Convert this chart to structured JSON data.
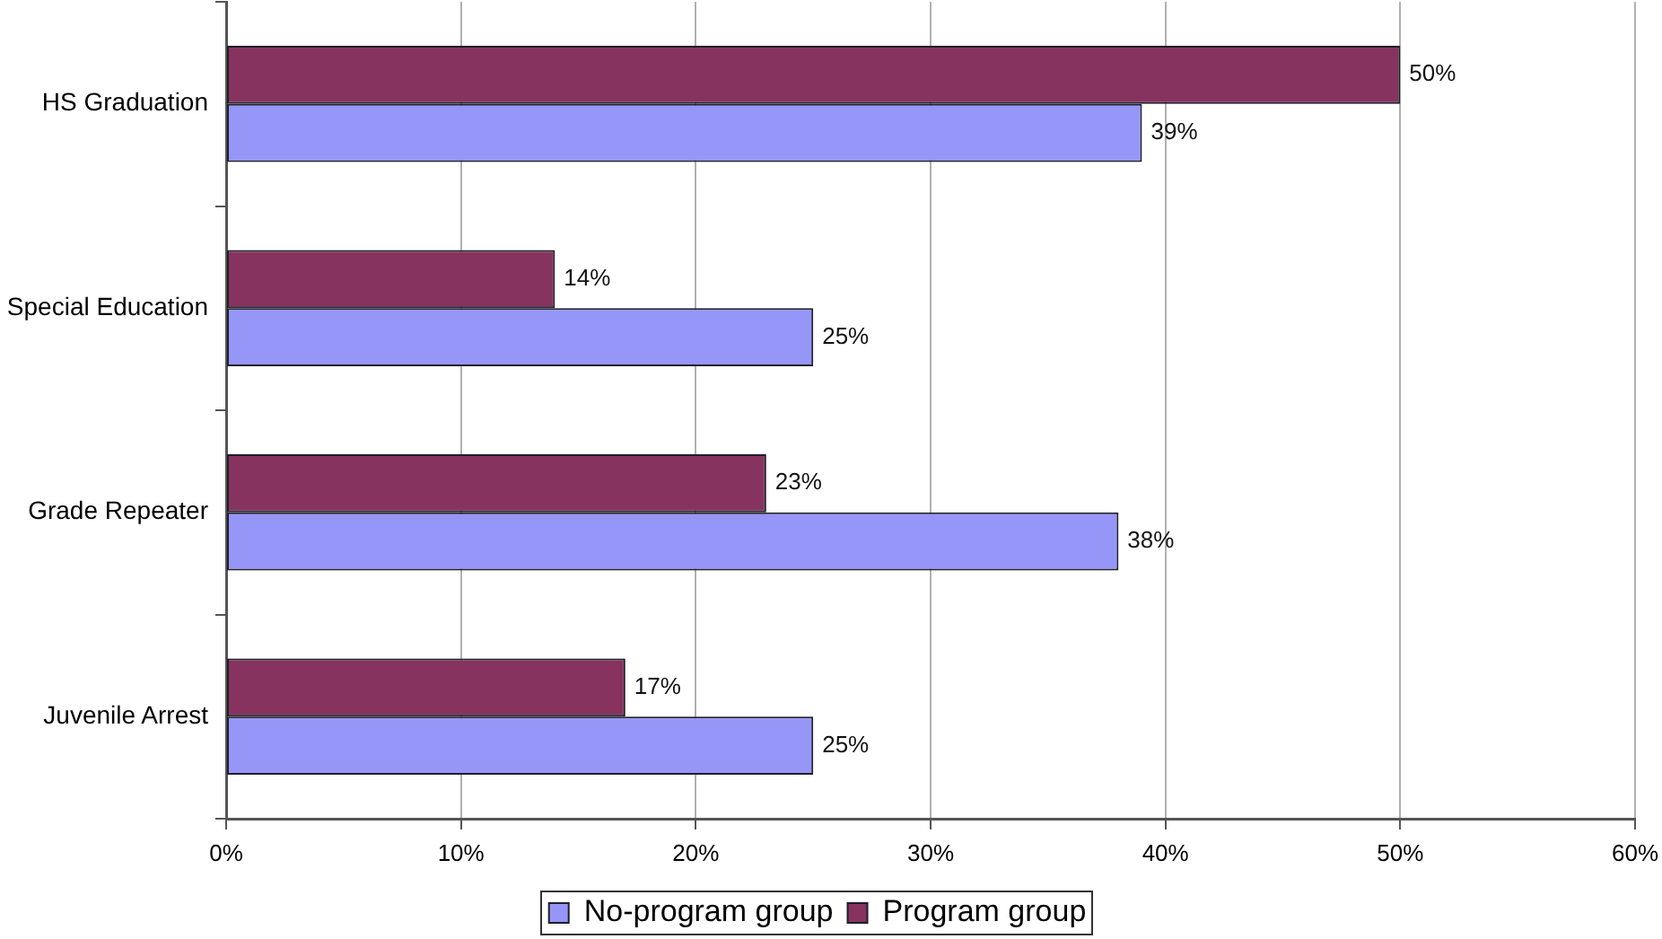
{
  "chart_data": {
    "type": "bar",
    "orientation": "horizontal",
    "categories": [
      "HS Graduation",
      "Special Education",
      "Grade Repeater",
      "Juvenile Arrest"
    ],
    "series": [
      {
        "name": "No-program group",
        "color": "#9696f8",
        "values": [
          39,
          25,
          38,
          25
        ],
        "value_labels": [
          "39%",
          "25%",
          "38%",
          "25%"
        ]
      },
      {
        "name": "Program group",
        "color": "#86345f",
        "values": [
          50,
          14,
          23,
          17
        ],
        "value_labels": [
          "50%",
          "14%",
          "23%",
          "17%"
        ]
      }
    ],
    "xlim": [
      0,
      60
    ],
    "xticks": [
      {
        "value": 0,
        "label": "0%"
      },
      {
        "value": 10,
        "label": "10%"
      },
      {
        "value": 20,
        "label": "20%"
      },
      {
        "value": 30,
        "label": "30%"
      },
      {
        "value": 40,
        "label": "40%"
      },
      {
        "value": 50,
        "label": "50%"
      },
      {
        "value": 60,
        "label": "60%"
      }
    ],
    "grid": "x",
    "legend": "bottom"
  }
}
